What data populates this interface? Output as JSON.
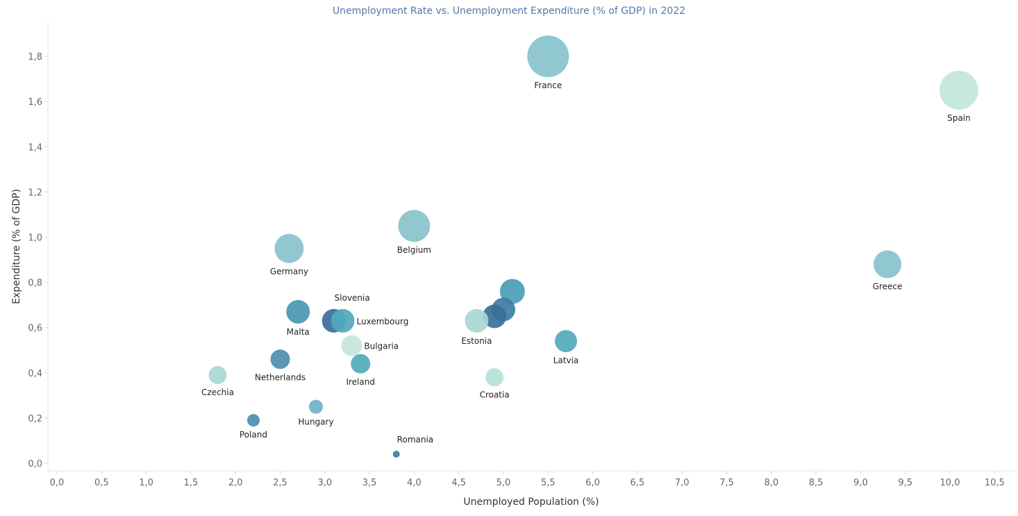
{
  "chart_data": {
    "type": "scatter",
    "title": "Unemployment Rate vs. Unemployment Expenditure (% of GDP) in 2022",
    "xlabel": "Unemployed Population (%)",
    "ylabel": "Expenditure (% of GDP)",
    "xlim": [
      -0.1,
      10.8
    ],
    "ylim": [
      -0.03,
      1.96
    ],
    "x_ticks": [
      "0,0",
      "0,5",
      "1,0",
      "1,5",
      "2,0",
      "2,5",
      "3,0",
      "3,5",
      "4,0",
      "4,5",
      "5,0",
      "5,5",
      "6,0",
      "6,5",
      "7,0",
      "7,5",
      "8,0",
      "8,5",
      "9,0",
      "9,5",
      "10,0",
      "10,5"
    ],
    "x_tick_values": [
      0,
      0.5,
      1,
      1.5,
      2,
      2.5,
      3,
      3.5,
      4,
      4.5,
      5,
      5.5,
      6,
      6.5,
      7,
      7.5,
      8,
      8.5,
      9,
      9.5,
      10,
      10.5
    ],
    "y_ticks": [
      "0,0",
      "0,2",
      "0,4",
      "0,6",
      "0,8",
      "1,0",
      "1,2",
      "1,4",
      "1,6",
      "1,8"
    ],
    "y_tick_values": [
      0,
      0.2,
      0.4,
      0.6,
      0.8,
      1.0,
      1.2,
      1.4,
      1.6,
      1.8
    ],
    "grid": false,
    "points": [
      {
        "label": "France",
        "x": 5.5,
        "y": 1.8,
        "size": 30,
        "color": "#88c3cc",
        "label_pos": "below"
      },
      {
        "label": "Spain",
        "x": 10.1,
        "y": 1.65,
        "size": 28,
        "color": "#c2e6dc",
        "label_pos": "below"
      },
      {
        "label": "Belgium",
        "x": 4.0,
        "y": 1.05,
        "size": 23,
        "color": "#88c3cc",
        "label_pos": "below"
      },
      {
        "label": "Germany",
        "x": 2.6,
        "y": 0.95,
        "size": 21,
        "color": "#88c3cc",
        "label_pos": "below"
      },
      {
        "label": "Greece",
        "x": 9.3,
        "y": 0.88,
        "size": 20,
        "color": "#88c3cc",
        "label_pos": "below"
      },
      {
        "label": "",
        "x": 5.1,
        "y": 0.76,
        "size": 18,
        "color": "#4b9db6",
        "label_pos": "none"
      },
      {
        "label": "",
        "x": 5.0,
        "y": 0.68,
        "size": 17,
        "color": "#3d7ea3",
        "label_pos": "none"
      },
      {
        "label": "",
        "x": 4.9,
        "y": 0.65,
        "size": 17,
        "color": "#3a6f98",
        "label_pos": "none"
      },
      {
        "label": "Estonia",
        "x": 4.7,
        "y": 0.63,
        "size": 17,
        "color": "#a9d7d5",
        "label_pos": "below"
      },
      {
        "label": "Malta",
        "x": 2.7,
        "y": 0.67,
        "size": 17,
        "color": "#4b96b3",
        "label_pos": "below"
      },
      {
        "label": "Slovenia",
        "x": 3.1,
        "y": 0.63,
        "size": 17,
        "color": "#3d6e9a",
        "label_pos": "above-right"
      },
      {
        "label": "Luxembourg",
        "x": 3.2,
        "y": 0.63,
        "size": 17,
        "color": "#53a9bd",
        "label_pos": "right"
      },
      {
        "label": "Latvia",
        "x": 5.7,
        "y": 0.54,
        "size": 16,
        "color": "#53a9bd",
        "label_pos": "below"
      },
      {
        "label": "Bulgaria",
        "x": 3.3,
        "y": 0.52,
        "size": 15,
        "color": "#c2e6dc",
        "label_pos": "right"
      },
      {
        "label": "Netherlands",
        "x": 2.5,
        "y": 0.46,
        "size": 14,
        "color": "#4b8eaf",
        "label_pos": "below"
      },
      {
        "label": "Ireland",
        "x": 3.4,
        "y": 0.44,
        "size": 14,
        "color": "#53a9bd",
        "label_pos": "below"
      },
      {
        "label": "Czechia",
        "x": 1.8,
        "y": 0.39,
        "size": 13,
        "color": "#a9d7d5",
        "label_pos": "below"
      },
      {
        "label": "Croatia",
        "x": 4.9,
        "y": 0.38,
        "size": 13,
        "color": "#b6e0d9",
        "label_pos": "below"
      },
      {
        "label": "Hungary",
        "x": 2.9,
        "y": 0.25,
        "size": 10,
        "color": "#6cb3c7",
        "label_pos": "below"
      },
      {
        "label": "Poland",
        "x": 2.2,
        "y": 0.19,
        "size": 9,
        "color": "#4b8eaf",
        "label_pos": "below"
      },
      {
        "label": "Romania",
        "x": 3.8,
        "y": 0.04,
        "size": 5,
        "color": "#3d7ea3",
        "label_pos": "above-right"
      }
    ]
  }
}
